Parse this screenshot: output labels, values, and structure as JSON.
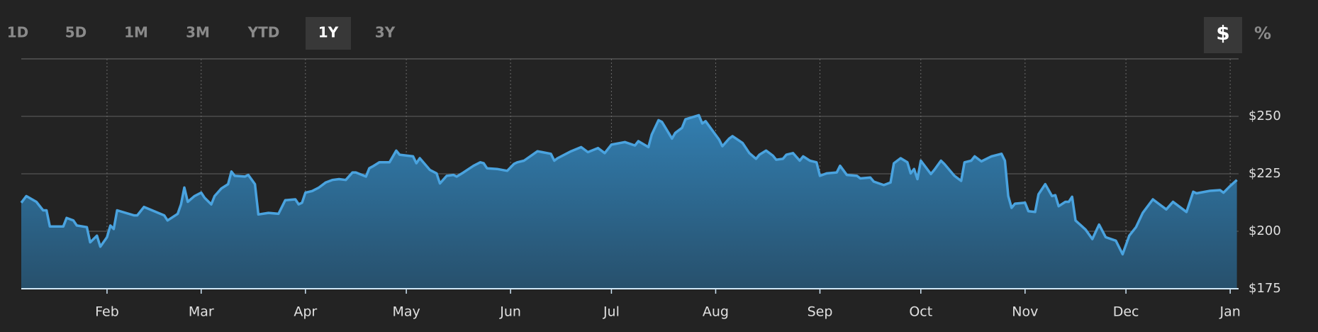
{
  "controls": {
    "ranges": [
      "1D",
      "5D",
      "1M",
      "3M",
      "YTD",
      "1Y",
      "3Y"
    ],
    "active_range": "1Y",
    "units": [
      "$",
      "%"
    ],
    "active_unit": "$"
  },
  "chart_data": {
    "type": "area",
    "color": "#4aa3df",
    "grid": true,
    "x": [
      -25.5,
      -24,
      -21,
      -19,
      -18,
      -17,
      -13,
      -12,
      -10,
      -9,
      -6,
      -5,
      -3,
      -2,
      0,
      1,
      2,
      3,
      8,
      9,
      11,
      17,
      18,
      21,
      22,
      23,
      24,
      26,
      28,
      29,
      31,
      32,
      34,
      36,
      37,
      38,
      41,
      42,
      44,
      45,
      48,
      51,
      53,
      56,
      57,
      58,
      59,
      61,
      63,
      65,
      67,
      69,
      71,
      73,
      74,
      77,
      78,
      79,
      81,
      84,
      86,
      87,
      91,
      92,
      93,
      96,
      98,
      99,
      101,
      103,
      104,
      106,
      109,
      111,
      112,
      113,
      116,
      119,
      121,
      122,
      124,
      128,
      132,
      133,
      134,
      138,
      141,
      143,
      146,
      148,
      150,
      154,
      157,
      158,
      161,
      162,
      164,
      165,
      167,
      168,
      169,
      171,
      172,
      176,
      177,
      178,
      180,
      182,
      183,
      185,
      186,
      189,
      191,
      193,
      194,
      196,
      198,
      199,
      201,
      202,
      204,
      206,
      207,
      209,
      211,
      212,
      214,
      217,
      218,
      220,
      223,
      224,
      227,
      228,
      231,
      233,
      234,
      236,
      238,
      239,
      240,
      241,
      242,
      245,
      246,
      248,
      249,
      252,
      254,
      255,
      257,
      258,
      260,
      263,
      266,
      267,
      268,
      269,
      270,
      273,
      274,
      276,
      277,
      279,
      281,
      282,
      283,
      285,
      286,
      287,
      288,
      291,
      293,
      295,
      297,
      300,
      302,
      304,
      306,
      308,
      311,
      313,
      315,
      317,
      319,
      321,
      323,
      324,
      328,
      331,
      332,
      334,
      336
    ],
    "series": [
      {
        "values": [
          212.4,
          215.3,
          212.8,
          209.1,
          209.1,
          202.1,
          202.1,
          205.8,
          204.7,
          202.5,
          201.8,
          195.2,
          198.1,
          193.3,
          197.4,
          202.5,
          201.0,
          209.1,
          206.9,
          206.9,
          210.6,
          206.9,
          204.7,
          207.6,
          211.7,
          219.0,
          212.8,
          215.3,
          216.8,
          214.6,
          211.7,
          215.3,
          218.6,
          220.5,
          226.0,
          224.1,
          223.8,
          224.5,
          220.5,
          207.3,
          208.0,
          207.6,
          213.5,
          213.9,
          211.7,
          212.4,
          216.8,
          217.5,
          219.0,
          221.2,
          222.3,
          222.7,
          222.3,
          225.6,
          225.6,
          223.8,
          227.4,
          228.2,
          230.0,
          230.0,
          235.1,
          233.3,
          232.6,
          229.6,
          231.8,
          226.7,
          225.2,
          220.8,
          224.1,
          224.5,
          223.8,
          225.6,
          228.5,
          230.0,
          229.6,
          227.4,
          227.1,
          226.3,
          229.3,
          230.0,
          230.7,
          234.8,
          233.7,
          230.7,
          231.8,
          234.8,
          236.6,
          234.4,
          236.2,
          234.0,
          237.7,
          238.8,
          237.3,
          239.2,
          236.6,
          242.1,
          248.3,
          247.6,
          242.8,
          240.3,
          242.8,
          245.0,
          248.7,
          250.5,
          246.9,
          247.9,
          243.9,
          239.9,
          237.0,
          240.3,
          241.4,
          238.4,
          234.0,
          231.5,
          233.3,
          235.1,
          232.9,
          231.1,
          231.5,
          233.3,
          234.0,
          230.7,
          232.6,
          230.7,
          230.0,
          224.1,
          225.2,
          225.6,
          228.5,
          224.5,
          224.1,
          223.0,
          223.4,
          221.6,
          220.1,
          221.2,
          229.6,
          231.8,
          230.0,
          225.2,
          227.1,
          222.7,
          230.7,
          224.9,
          226.7,
          230.7,
          229.3,
          224.1,
          221.9,
          230.0,
          230.7,
          232.6,
          230.4,
          232.6,
          233.7,
          230.7,
          215.3,
          210.2,
          212.0,
          212.4,
          208.7,
          208.4,
          216.1,
          220.5,
          215.3,
          215.7,
          210.9,
          212.8,
          212.8,
          215.0,
          204.7,
          200.7,
          196.6,
          202.9,
          197.4,
          195.9,
          190.0,
          198.1,
          201.8,
          208.0,
          213.9,
          211.7,
          209.5,
          212.8,
          210.6,
          208.4,
          217.2,
          216.5,
          217.6,
          217.9,
          216.8,
          219.7,
          222.3
        ]
      }
    ],
    "xlim": [
      -25.5,
      336.5
    ],
    "xticks": [
      {
        "value": 0,
        "label": "Feb"
      },
      {
        "value": 28,
        "label": "Mar"
      },
      {
        "value": 59,
        "label": "Apr"
      },
      {
        "value": 89,
        "label": "May"
      },
      {
        "value": 120,
        "label": "Jun"
      },
      {
        "value": 150,
        "label": "Jul"
      },
      {
        "value": 181,
        "label": "Aug"
      },
      {
        "value": 212,
        "label": "Sep"
      },
      {
        "value": 242,
        "label": "Oct"
      },
      {
        "value": 273,
        "label": "Nov"
      },
      {
        "value": 303,
        "label": "Dec"
      },
      {
        "value": 334,
        "label": "Jan"
      }
    ],
    "ylim": [
      175,
      275
    ],
    "yticks": [
      {
        "value": 175,
        "label": "$175"
      },
      {
        "value": 200,
        "label": "$200"
      },
      {
        "value": 225,
        "label": "$225"
      },
      {
        "value": 250,
        "label": "$250"
      }
    ]
  }
}
